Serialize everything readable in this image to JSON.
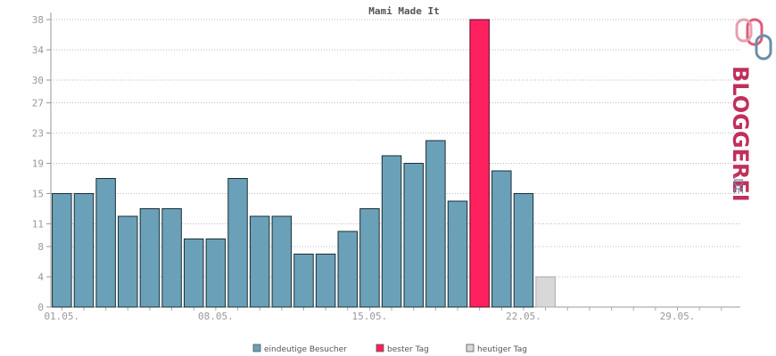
{
  "chart_data": {
    "type": "bar",
    "title": "Mami Made It",
    "yticks": [
      0,
      4,
      8,
      11,
      15,
      19,
      23,
      27,
      30,
      34,
      38
    ],
    "ylim": [
      0,
      38
    ],
    "xlabels": [
      {
        "day": 1,
        "label": "01.05."
      },
      {
        "day": 8,
        "label": "08.05."
      },
      {
        "day": 15,
        "label": "15.05."
      },
      {
        "day": 22,
        "label": "22.05."
      },
      {
        "day": 29,
        "label": "29.05."
      }
    ],
    "days_in_month": 31,
    "grid": true,
    "legend_position": "bottom",
    "series": [
      {
        "name": "eindeutige Besucher",
        "color": "#6aa1b8"
      },
      {
        "name": "bester Tag",
        "color": "#ff2060"
      },
      {
        "name": "heutiger Tag",
        "color": "#d8d8d8"
      }
    ],
    "values": [
      15,
      15,
      17,
      12,
      13,
      13,
      9,
      9,
      17,
      12,
      12,
      7,
      7,
      10,
      13,
      20,
      19,
      22,
      14,
      38,
      18,
      15,
      4
    ],
    "best_day_index": 19,
    "today_index": 22
  },
  "logo": {
    "text_main": "BLOGGEREI",
    "text_suffix": ".DE",
    "color_main": "#c0305a",
    "color_suffix": "#6a8fa8"
  }
}
